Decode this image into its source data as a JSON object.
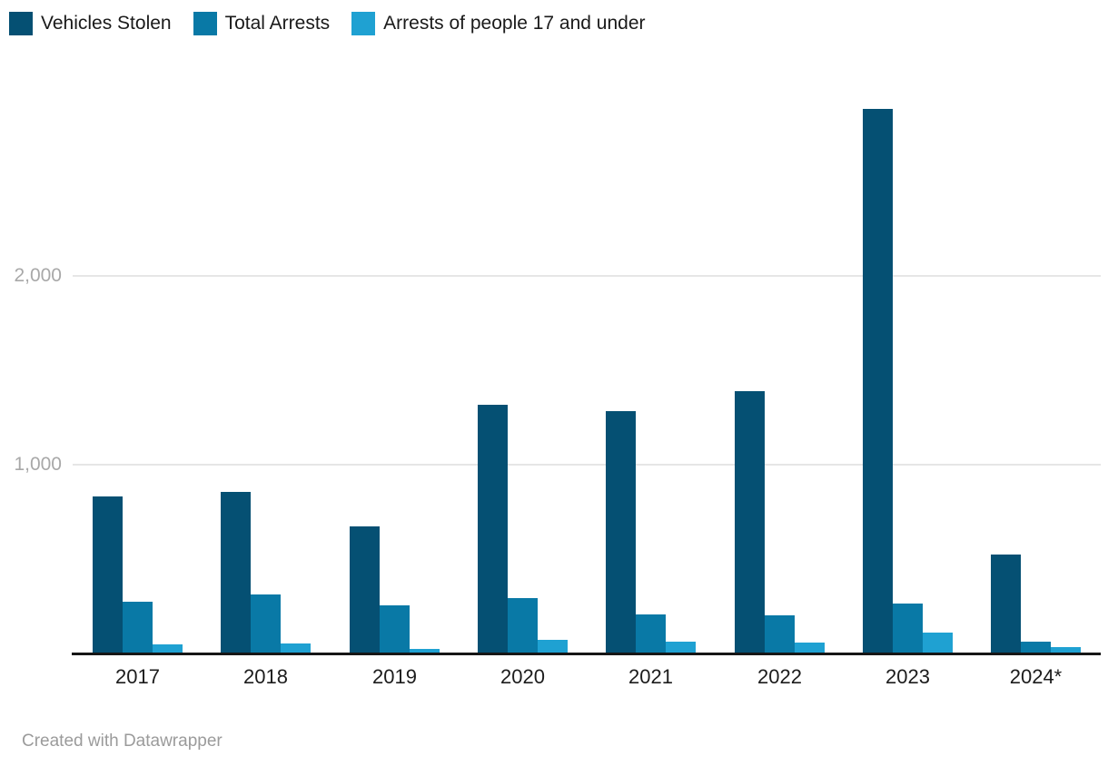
{
  "chart_data": {
    "type": "bar",
    "title": "",
    "xlabel": "",
    "ylabel": "",
    "categories": [
      "2017",
      "2018",
      "2019",
      "2020",
      "2021",
      "2022",
      "2023",
      "2024*"
    ],
    "series": [
      {
        "name": "Vehicles Stolen",
        "color": "#055073",
        "values": [
          831,
          851,
          668,
          1314,
          1281,
          1387,
          2886,
          519
        ]
      },
      {
        "name": "Total Arrests",
        "color": "#0979a6",
        "values": [
          270,
          307,
          249,
          287,
          202,
          198,
          258,
          56
        ]
      },
      {
        "name": "Arrests of people 17 and under",
        "color": "#1fa1d2",
        "values": [
          41,
          47,
          18,
          66,
          56,
          52,
          105,
          29
        ]
      }
    ],
    "ylim": [
      0,
      3000
    ],
    "yticks": [
      {
        "value": 1000,
        "label": "1,000"
      },
      {
        "value": 2000,
        "label": "2,000"
      }
    ],
    "grid": true,
    "legend_position": "top-left",
    "axis_colors": {
      "gridline": "#e6e6e6",
      "baseline": "#161616",
      "tick_label": "#a8a8a8"
    }
  },
  "footer": {
    "credit": "Created with Datawrapper"
  }
}
